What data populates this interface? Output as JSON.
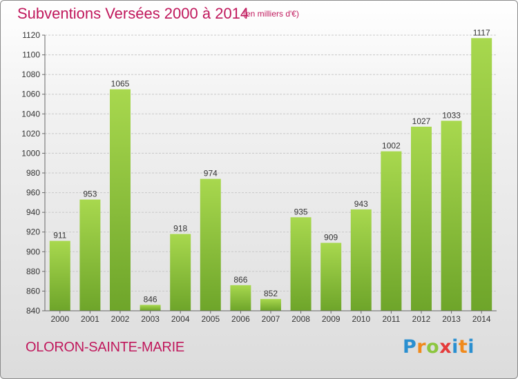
{
  "header": {
    "title": "Subventions Versées 2000 à 2014",
    "subtitle": "(en milliers d'€)"
  },
  "footer": {
    "commune": "OLORON-SAINTE-MARIE",
    "logo_text": "Proxiti"
  },
  "colors": {
    "title": "#c0185c",
    "bar_light": "#a8d84e",
    "bar_dark": "#6ea52a",
    "grid": "#c8c8c8"
  },
  "chart_data": {
    "type": "bar",
    "title": "Subventions Versées 2000 à 2014",
    "subtitle": "(en milliers d'€)",
    "categories": [
      "2000",
      "2001",
      "2002",
      "2003",
      "2004",
      "2005",
      "2006",
      "2007",
      "2008",
      "2009",
      "2010",
      "2011",
      "2012",
      "2013",
      "2014"
    ],
    "values": [
      911,
      953,
      1065,
      846,
      918,
      974,
      866,
      852,
      935,
      909,
      943,
      1002,
      1027,
      1033,
      1117
    ],
    "ylim": [
      840,
      1120
    ],
    "yticks": [
      840,
      860,
      880,
      900,
      920,
      940,
      960,
      980,
      1000,
      1020,
      1040,
      1060,
      1080,
      1100,
      1120
    ],
    "grid": true,
    "legend": "none"
  }
}
